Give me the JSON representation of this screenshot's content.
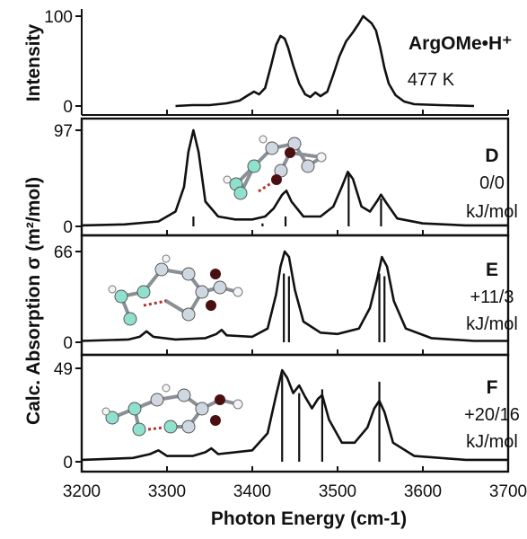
{
  "chart_data": {
    "type": "line",
    "xlabel": "Photon Energy (cm-1)",
    "xlim": [
      3200,
      3700
    ],
    "x_ticks": [
      "3200",
      "3300",
      "3400",
      "3500",
      "3600",
      "3700"
    ],
    "shared_ylabel": "Calc. Absorption σ (m²/mol)",
    "panels": [
      {
        "id": "exp",
        "ylabel": "Intensity",
        "ylim": [
          0,
          100
        ],
        "y_ticks": [
          "0",
          "100"
        ],
        "label_bold": "ArgOMe•H⁺",
        "label_lines": [
          "477 K"
        ],
        "series": [
          {
            "points": [
              [
                3310,
                0
              ],
              [
                3330,
                1
              ],
              [
                3350,
                1
              ],
              [
                3370,
                3
              ],
              [
                3385,
                6
              ],
              [
                3395,
                12
              ],
              [
                3402,
                16
              ],
              [
                3408,
                13
              ],
              [
                3415,
                20
              ],
              [
                3422,
                45
              ],
              [
                3428,
                68
              ],
              [
                3433,
                78
              ],
              [
                3438,
                75
              ],
              [
                3442,
                65
              ],
              [
                3448,
                45
              ],
              [
                3455,
                25
              ],
              [
                3462,
                13
              ],
              [
                3468,
                10
              ],
              [
                3474,
                15
              ],
              [
                3480,
                11
              ],
              [
                3488,
                16
              ],
              [
                3495,
                35
              ],
              [
                3502,
                55
              ],
              [
                3510,
                72
              ],
              [
                3518,
                82
              ],
              [
                3525,
                92
              ],
              [
                3530,
                100
              ],
              [
                3535,
                96
              ],
              [
                3540,
                92
              ],
              [
                3545,
                84
              ],
              [
                3550,
                65
              ],
              [
                3555,
                42
              ],
              [
                3560,
                25
              ],
              [
                3568,
                12
              ],
              [
                3578,
                5
              ],
              [
                3590,
                2
              ],
              [
                3620,
                1
              ],
              [
                3660,
                0
              ]
            ]
          }
        ]
      },
      {
        "id": "D",
        "ylim": [
          0,
          97
        ],
        "y_ticks": [
          "0",
          "97"
        ],
        "label_bold": "D",
        "label_lines": [
          "0/0",
          "kJ/mol"
        ],
        "sticks": [
          {
            "x": 3331,
            "h": 10
          },
          {
            "x": 3412,
            "h": 3
          },
          {
            "x": 3439,
            "h": 10
          },
          {
            "x": 3513,
            "h": 52
          },
          {
            "x": 3551,
            "h": 28
          }
        ],
        "series": [
          {
            "points": [
              [
                3200,
                1
              ],
              [
                3250,
                2
              ],
              [
                3290,
                5
              ],
              [
                3310,
                15
              ],
              [
                3320,
                40
              ],
              [
                3325,
                75
              ],
              [
                3331,
                97
              ],
              [
                3337,
                75
              ],
              [
                3345,
                25
              ],
              [
                3360,
                10
              ],
              [
                3380,
                7
              ],
              [
                3400,
                7
              ],
              [
                3415,
                10
              ],
              [
                3425,
                18
              ],
              [
                3435,
                32
              ],
              [
                3440,
                36
              ],
              [
                3446,
                25
              ],
              [
                3460,
                10
              ],
              [
                3480,
                10
              ],
              [
                3495,
                20
              ],
              [
                3505,
                40
              ],
              [
                3512,
                55
              ],
              [
                3518,
                48
              ],
              [
                3528,
                20
              ],
              [
                3538,
                15
              ],
              [
                3546,
                25
              ],
              [
                3551,
                32
              ],
              [
                3557,
                24
              ],
              [
                3570,
                8
              ],
              [
                3600,
                3
              ],
              [
                3650,
                1
              ],
              [
                3700,
                1
              ]
            ]
          }
        ]
      },
      {
        "id": "E",
        "ylim": [
          0,
          66
        ],
        "y_ticks": [
          "0",
          "66"
        ],
        "label_bold": "E",
        "label_lines": [
          "+11/3",
          "kJ/mol"
        ],
        "sticks": [
          {
            "x": 3437,
            "h": 50
          },
          {
            "x": 3443,
            "h": 48
          },
          {
            "x": 3549,
            "h": 50
          },
          {
            "x": 3555,
            "h": 48
          }
        ],
        "series": [
          {
            "points": [
              [
                3200,
                1
              ],
              [
                3255,
                2
              ],
              [
                3268,
                4
              ],
              [
                3276,
                8
              ],
              [
                3284,
                4
              ],
              [
                3310,
                2
              ],
              [
                3345,
                3
              ],
              [
                3358,
                6
              ],
              [
                3364,
                9
              ],
              [
                3370,
                5
              ],
              [
                3400,
                4
              ],
              [
                3418,
                10
              ],
              [
                3428,
                35
              ],
              [
                3433,
                55
              ],
              [
                3438,
                66
              ],
              [
                3443,
                62
              ],
              [
                3450,
                38
              ],
              [
                3460,
                15
              ],
              [
                3480,
                7
              ],
              [
                3500,
                6
              ],
              [
                3525,
                10
              ],
              [
                3538,
                25
              ],
              [
                3546,
                45
              ],
              [
                3552,
                62
              ],
              [
                3558,
                55
              ],
              [
                3566,
                30
              ],
              [
                3580,
                10
              ],
              [
                3610,
                3
              ],
              [
                3660,
                1
              ],
              [
                3700,
                1
              ]
            ]
          }
        ]
      },
      {
        "id": "F",
        "ylim": [
          0,
          49
        ],
        "y_ticks": [
          "0",
          "49"
        ],
        "label_bold": "F",
        "label_lines": [
          "+20/16",
          "kJ/mol"
        ],
        "sticks": [
          {
            "x": 3435,
            "h": 46
          },
          {
            "x": 3455,
            "h": 36
          },
          {
            "x": 3482,
            "h": 38
          },
          {
            "x": 3549,
            "h": 42
          }
        ],
        "series": [
          {
            "points": [
              [
                3200,
                1
              ],
              [
                3260,
                2
              ],
              [
                3280,
                4
              ],
              [
                3290,
                6
              ],
              [
                3300,
                3
              ],
              [
                3330,
                3
              ],
              [
                3345,
                5
              ],
              [
                3352,
                7
              ],
              [
                3360,
                4
              ],
              [
                3400,
                6
              ],
              [
                3418,
                15
              ],
              [
                3428,
                35
              ],
              [
                3435,
                48
              ],
              [
                3441,
                44
              ],
              [
                3448,
                36
              ],
              [
                3455,
                40
              ],
              [
                3462,
                34
              ],
              [
                3470,
                28
              ],
              [
                3477,
                33
              ],
              [
                3482,
                35
              ],
              [
                3490,
                22
              ],
              [
                3505,
                10
              ],
              [
                3520,
                10
              ],
              [
                3535,
                18
              ],
              [
                3543,
                28
              ],
              [
                3549,
                32
              ],
              [
                3555,
                26
              ],
              [
                3565,
                10
              ],
              [
                3590,
                3
              ],
              [
                3650,
                1
              ],
              [
                3700,
                1
              ]
            ]
          }
        ]
      }
    ]
  },
  "colors": {
    "line": "#111111",
    "hbond": "#b5332e",
    "carbon": "#cfd8e0",
    "nitrogen": "#8fe0cc",
    "oxygen": "#4a0f10",
    "hydrogen": "#f2f4f6"
  }
}
